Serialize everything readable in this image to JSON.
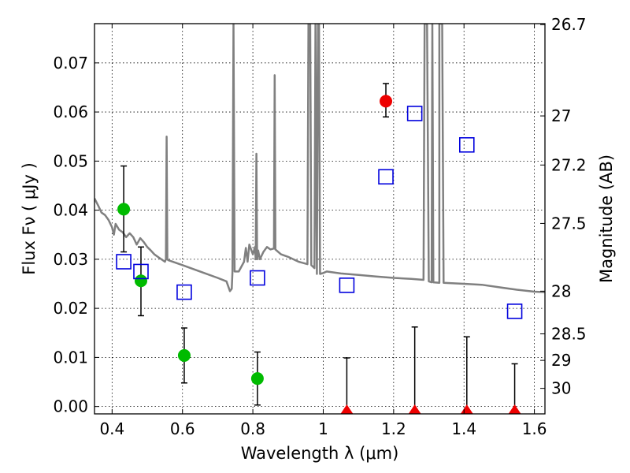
{
  "chart_data": {
    "type": "scatter",
    "title": "",
    "xlabel": "Wavelength  λ (μm)",
    "ylabel": "Flux  Fν  ( μJy )",
    "ylabel_right": "Magnitude (AB)",
    "xlim": [
      0.35,
      1.63
    ],
    "ylim": [
      -0.0015,
      0.078
    ],
    "grid": true,
    "x_ticks": [
      0.4,
      0.6,
      0.8,
      1.0,
      1.2,
      1.4,
      1.6
    ],
    "x_tick_labels": [
      "0.4",
      "0.6",
      "0.8",
      "1",
      "1.2",
      "1.4",
      "1.6"
    ],
    "y_ticks": [
      0.0,
      0.01,
      0.02,
      0.03,
      0.04,
      0.05,
      0.06,
      0.07
    ],
    "y_tick_labels": [
      "0.00",
      "0.01",
      "0.02",
      "0.03",
      "0.04",
      "0.05",
      "0.06",
      "0.07"
    ],
    "right_ticks": [
      {
        "label": "26.7",
        "flux": 0.0778
      },
      {
        "label": "27",
        "flux": 0.0592
      },
      {
        "label": "27.2",
        "flux": 0.0492
      },
      {
        "label": "27.5",
        "flux": 0.0373
      },
      {
        "label": "28",
        "flux": 0.0235
      },
      {
        "label": "28.5",
        "flux": 0.0148
      },
      {
        "label": "29",
        "flux": 0.0094
      },
      {
        "label": "30",
        "flux": 0.0037
      }
    ],
    "series": [
      {
        "name": "template spectrum",
        "kind": "line",
        "color": "#808080",
        "points": [
          [
            0.35,
            0.0424
          ],
          [
            0.36,
            0.041
          ],
          [
            0.37,
            0.0395
          ],
          [
            0.38,
            0.039
          ],
          [
            0.39,
            0.038
          ],
          [
            0.4,
            0.0365
          ],
          [
            0.405,
            0.035
          ],
          [
            0.41,
            0.0372
          ],
          [
            0.42,
            0.036
          ],
          [
            0.43,
            0.0355
          ],
          [
            0.44,
            0.0345
          ],
          [
            0.45,
            0.0353
          ],
          [
            0.46,
            0.0345
          ],
          [
            0.47,
            0.033
          ],
          [
            0.48,
            0.0343
          ],
          [
            0.49,
            0.0335
          ],
          [
            0.5,
            0.0325
          ],
          [
            0.51,
            0.0318
          ],
          [
            0.52,
            0.031
          ],
          [
            0.53,
            0.0305
          ],
          [
            0.54,
            0.03
          ],
          [
            0.55,
            0.0295
          ],
          [
            0.553,
            0.03
          ],
          [
            0.555,
            0.055
          ],
          [
            0.557,
            0.03
          ],
          [
            0.56,
            0.0298
          ],
          [
            0.6,
            0.0288
          ],
          [
            0.65,
            0.0275
          ],
          [
            0.7,
            0.0262
          ],
          [
            0.725,
            0.0255
          ],
          [
            0.735,
            0.0235
          ],
          [
            0.74,
            0.024
          ],
          [
            0.742,
            0.0275
          ],
          [
            0.745,
            0.078
          ],
          [
            0.748,
            0.0275
          ],
          [
            0.76,
            0.0275
          ],
          [
            0.775,
            0.0295
          ],
          [
            0.78,
            0.0323
          ],
          [
            0.785,
            0.0295
          ],
          [
            0.79,
            0.033
          ],
          [
            0.8,
            0.031
          ],
          [
            0.806,
            0.0325
          ],
          [
            0.808,
            0.03
          ],
          [
            0.81,
            0.0515
          ],
          [
            0.812,
            0.03
          ],
          [
            0.815,
            0.0318
          ],
          [
            0.82,
            0.03
          ],
          [
            0.83,
            0.0315
          ],
          [
            0.84,
            0.0325
          ],
          [
            0.85,
            0.032
          ],
          [
            0.86,
            0.0322
          ],
          [
            0.862,
            0.0675
          ],
          [
            0.864,
            0.032
          ],
          [
            0.88,
            0.031
          ],
          [
            0.9,
            0.0305
          ],
          [
            0.93,
            0.0295
          ],
          [
            0.955,
            0.029
          ],
          [
            0.958,
            0.078
          ],
          [
            0.963,
            0.078
          ],
          [
            0.966,
            0.0288
          ],
          [
            0.975,
            0.0282
          ],
          [
            0.978,
            0.078
          ],
          [
            0.982,
            0.027
          ],
          [
            0.985,
            0.078
          ],
          [
            0.988,
            0.078
          ],
          [
            0.991,
            0.027
          ],
          [
            1.0,
            0.0272
          ],
          [
            1.01,
            0.0275
          ],
          [
            1.05,
            0.0271
          ],
          [
            1.1,
            0.0268
          ],
          [
            1.15,
            0.0265
          ],
          [
            1.2,
            0.0262
          ],
          [
            1.25,
            0.026
          ],
          [
            1.285,
            0.0258
          ],
          [
            1.288,
            0.078
          ],
          [
            1.295,
            0.078
          ],
          [
            1.3,
            0.0255
          ],
          [
            1.308,
            0.0253
          ],
          [
            1.31,
            0.078
          ],
          [
            1.313,
            0.0253
          ],
          [
            1.33,
            0.0252
          ],
          [
            1.33,
            0.078
          ],
          [
            1.338,
            0.078
          ],
          [
            1.342,
            0.0252
          ],
          [
            1.4,
            0.025
          ],
          [
            1.45,
            0.0248
          ],
          [
            1.5,
            0.0243
          ],
          [
            1.55,
            0.0238
          ],
          [
            1.6,
            0.0234
          ],
          [
            1.63,
            0.0233
          ]
        ]
      },
      {
        "name": "green detections",
        "kind": "circle",
        "color": "#00bb00",
        "points": [
          {
            "x": 0.433,
            "y": 0.0402,
            "ylow": 0.0315,
            "yhigh": 0.049
          },
          {
            "x": 0.482,
            "y": 0.0256,
            "ylow": 0.0185,
            "yhigh": 0.0325
          },
          {
            "x": 0.605,
            "y": 0.0104,
            "ylow": 0.0048,
            "yhigh": 0.016
          },
          {
            "x": 0.813,
            "y": 0.0057,
            "ylow": 0.0003,
            "yhigh": 0.0111
          }
        ]
      },
      {
        "name": "red detection",
        "kind": "circle",
        "color": "#ee0000",
        "points": [
          {
            "x": 1.178,
            "y": 0.0622,
            "ylow": 0.059,
            "yhigh": 0.0658
          }
        ]
      },
      {
        "name": "red upper limits",
        "kind": "triangle",
        "color": "#ee0000",
        "points": [
          {
            "x": 1.067,
            "y": -0.0004,
            "ylow": -0.0004,
            "yhigh": 0.0099
          },
          {
            "x": 1.26,
            "y": -0.0004,
            "ylow": -0.0004,
            "yhigh": 0.0162
          },
          {
            "x": 1.408,
            "y": -0.0004,
            "ylow": -0.0004,
            "yhigh": 0.0142
          },
          {
            "x": 1.544,
            "y": -0.0004,
            "ylow": -0.0004,
            "yhigh": 0.0087
          }
        ]
      },
      {
        "name": "model photometry",
        "kind": "square",
        "color": "#0000dd",
        "points": [
          {
            "x": 0.433,
            "y": 0.0295
          },
          {
            "x": 0.482,
            "y": 0.0275
          },
          {
            "x": 0.605,
            "y": 0.0233
          },
          {
            "x": 0.813,
            "y": 0.0262
          },
          {
            "x": 1.067,
            "y": 0.0247
          },
          {
            "x": 1.178,
            "y": 0.0468
          },
          {
            "x": 1.26,
            "y": 0.0597
          },
          {
            "x": 1.408,
            "y": 0.0533
          },
          {
            "x": 1.544,
            "y": 0.0194
          }
        ]
      }
    ]
  }
}
